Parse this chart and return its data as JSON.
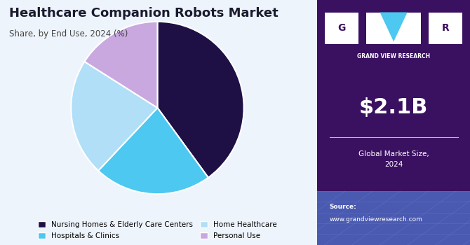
{
  "title": "Healthcare Companion Robots Market",
  "subtitle": "Share, by End Use, 2024 (%)",
  "slices": [
    0.4,
    0.22,
    0.22,
    0.16
  ],
  "labels": [
    "Nursing Homes & Elderly Care Centers",
    "Hospitals & Clinics",
    "Home Healthcare",
    "Personal Use"
  ],
  "colors": [
    "#1e1045",
    "#4dc8f0",
    "#b0dff7",
    "#c9a8e0"
  ],
  "start_angle": 90,
  "bg_color": "#eef4fb",
  "right_panel_color": "#3a1060",
  "right_panel_bottom_color": "#4a5ab0",
  "market_size": "$2.1B",
  "market_label": "Global Market Size,\n2024",
  "source_label": "Source:",
  "source_url": "www.grandviewresearch.com",
  "logo_text": "GRAND VIEW RESEARCH",
  "legend_cols": 2
}
